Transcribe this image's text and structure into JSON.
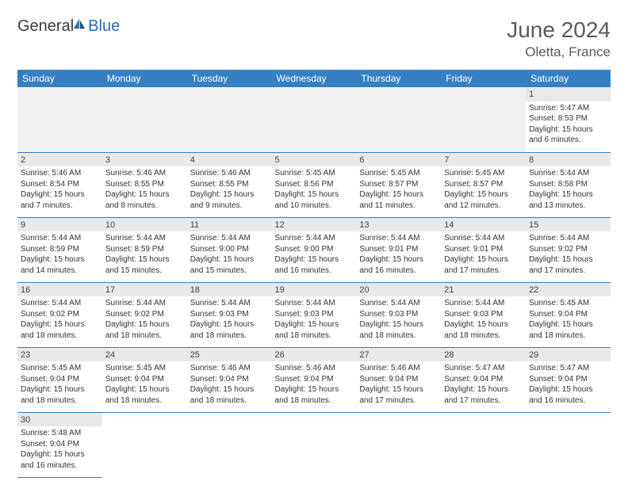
{
  "logo": {
    "part1": "General",
    "part2": "Blue"
  },
  "title": {
    "month_year": "June 2024",
    "location": "Oletta, France"
  },
  "colors": {
    "header_bg": "#3580c2",
    "header_fg": "#ffffff",
    "band_bg": "#e8e8e8",
    "rule": "#3580c2",
    "logo_gray": "#3a3a3a",
    "logo_blue": "#2a6db5"
  },
  "day_headers": [
    "Sunday",
    "Monday",
    "Tuesday",
    "Wednesday",
    "Thursday",
    "Friday",
    "Saturday"
  ],
  "weeks": [
    [
      null,
      null,
      null,
      null,
      null,
      null,
      {
        "n": "1",
        "sr": "Sunrise: 5:47 AM",
        "ss": "Sunset: 8:53 PM",
        "d1": "Daylight: 15 hours",
        "d2": "and 6 minutes."
      }
    ],
    [
      {
        "n": "2",
        "sr": "Sunrise: 5:46 AM",
        "ss": "Sunset: 8:54 PM",
        "d1": "Daylight: 15 hours",
        "d2": "and 7 minutes."
      },
      {
        "n": "3",
        "sr": "Sunrise: 5:46 AM",
        "ss": "Sunset: 8:55 PM",
        "d1": "Daylight: 15 hours",
        "d2": "and 8 minutes."
      },
      {
        "n": "4",
        "sr": "Sunrise: 5:46 AM",
        "ss": "Sunset: 8:55 PM",
        "d1": "Daylight: 15 hours",
        "d2": "and 9 minutes."
      },
      {
        "n": "5",
        "sr": "Sunrise: 5:45 AM",
        "ss": "Sunset: 8:56 PM",
        "d1": "Daylight: 15 hours",
        "d2": "and 10 minutes."
      },
      {
        "n": "6",
        "sr": "Sunrise: 5:45 AM",
        "ss": "Sunset: 8:57 PM",
        "d1": "Daylight: 15 hours",
        "d2": "and 11 minutes."
      },
      {
        "n": "7",
        "sr": "Sunrise: 5:45 AM",
        "ss": "Sunset: 8:57 PM",
        "d1": "Daylight: 15 hours",
        "d2": "and 12 minutes."
      },
      {
        "n": "8",
        "sr": "Sunrise: 5:44 AM",
        "ss": "Sunset: 8:58 PM",
        "d1": "Daylight: 15 hours",
        "d2": "and 13 minutes."
      }
    ],
    [
      {
        "n": "9",
        "sr": "Sunrise: 5:44 AM",
        "ss": "Sunset: 8:59 PM",
        "d1": "Daylight: 15 hours",
        "d2": "and 14 minutes."
      },
      {
        "n": "10",
        "sr": "Sunrise: 5:44 AM",
        "ss": "Sunset: 8:59 PM",
        "d1": "Daylight: 15 hours",
        "d2": "and 15 minutes."
      },
      {
        "n": "11",
        "sr": "Sunrise: 5:44 AM",
        "ss": "Sunset: 9:00 PM",
        "d1": "Daylight: 15 hours",
        "d2": "and 15 minutes."
      },
      {
        "n": "12",
        "sr": "Sunrise: 5:44 AM",
        "ss": "Sunset: 9:00 PM",
        "d1": "Daylight: 15 hours",
        "d2": "and 16 minutes."
      },
      {
        "n": "13",
        "sr": "Sunrise: 5:44 AM",
        "ss": "Sunset: 9:01 PM",
        "d1": "Daylight: 15 hours",
        "d2": "and 16 minutes."
      },
      {
        "n": "14",
        "sr": "Sunrise: 5:44 AM",
        "ss": "Sunset: 9:01 PM",
        "d1": "Daylight: 15 hours",
        "d2": "and 17 minutes."
      },
      {
        "n": "15",
        "sr": "Sunrise: 5:44 AM",
        "ss": "Sunset: 9:02 PM",
        "d1": "Daylight: 15 hours",
        "d2": "and 17 minutes."
      }
    ],
    [
      {
        "n": "16",
        "sr": "Sunrise: 5:44 AM",
        "ss": "Sunset: 9:02 PM",
        "d1": "Daylight: 15 hours",
        "d2": "and 18 minutes."
      },
      {
        "n": "17",
        "sr": "Sunrise: 5:44 AM",
        "ss": "Sunset: 9:02 PM",
        "d1": "Daylight: 15 hours",
        "d2": "and 18 minutes."
      },
      {
        "n": "18",
        "sr": "Sunrise: 5:44 AM",
        "ss": "Sunset: 9:03 PM",
        "d1": "Daylight: 15 hours",
        "d2": "and 18 minutes."
      },
      {
        "n": "19",
        "sr": "Sunrise: 5:44 AM",
        "ss": "Sunset: 9:03 PM",
        "d1": "Daylight: 15 hours",
        "d2": "and 18 minutes."
      },
      {
        "n": "20",
        "sr": "Sunrise: 5:44 AM",
        "ss": "Sunset: 9:03 PM",
        "d1": "Daylight: 15 hours",
        "d2": "and 18 minutes."
      },
      {
        "n": "21",
        "sr": "Sunrise: 5:44 AM",
        "ss": "Sunset: 9:03 PM",
        "d1": "Daylight: 15 hours",
        "d2": "and 18 minutes."
      },
      {
        "n": "22",
        "sr": "Sunrise: 5:45 AM",
        "ss": "Sunset: 9:04 PM",
        "d1": "Daylight: 15 hours",
        "d2": "and 18 minutes."
      }
    ],
    [
      {
        "n": "23",
        "sr": "Sunrise: 5:45 AM",
        "ss": "Sunset: 9:04 PM",
        "d1": "Daylight: 15 hours",
        "d2": "and 18 minutes."
      },
      {
        "n": "24",
        "sr": "Sunrise: 5:45 AM",
        "ss": "Sunset: 9:04 PM",
        "d1": "Daylight: 15 hours",
        "d2": "and 18 minutes."
      },
      {
        "n": "25",
        "sr": "Sunrise: 5:46 AM",
        "ss": "Sunset: 9:04 PM",
        "d1": "Daylight: 15 hours",
        "d2": "and 18 minutes."
      },
      {
        "n": "26",
        "sr": "Sunrise: 5:46 AM",
        "ss": "Sunset: 9:04 PM",
        "d1": "Daylight: 15 hours",
        "d2": "and 18 minutes."
      },
      {
        "n": "27",
        "sr": "Sunrise: 5:46 AM",
        "ss": "Sunset: 9:04 PM",
        "d1": "Daylight: 15 hours",
        "d2": "and 17 minutes."
      },
      {
        "n": "28",
        "sr": "Sunrise: 5:47 AM",
        "ss": "Sunset: 9:04 PM",
        "d1": "Daylight: 15 hours",
        "d2": "and 17 minutes."
      },
      {
        "n": "29",
        "sr": "Sunrise: 5:47 AM",
        "ss": "Sunset: 9:04 PM",
        "d1": "Daylight: 15 hours",
        "d2": "and 16 minutes."
      }
    ],
    [
      {
        "n": "30",
        "sr": "Sunrise: 5:48 AM",
        "ss": "Sunset: 9:04 PM",
        "d1": "Daylight: 15 hours",
        "d2": "and 16 minutes."
      },
      null,
      null,
      null,
      null,
      null,
      null
    ]
  ]
}
